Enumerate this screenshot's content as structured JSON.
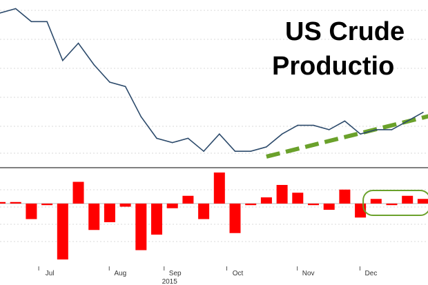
{
  "title": [
    "US Crude",
    "Productio"
  ],
  "chart_data": [
    {
      "type": "line",
      "name": "production",
      "x": [
        0,
        1,
        2,
        3,
        4,
        5,
        6,
        7,
        8,
        9,
        10,
        11,
        12,
        13,
        14,
        15,
        16,
        17,
        18,
        19,
        20,
        21,
        22,
        23,
        24,
        25,
        26,
        27
      ],
      "values": [
        9.59,
        9.6,
        9.57,
        9.57,
        9.48,
        9.52,
        9.47,
        9.43,
        9.42,
        9.35,
        9.3,
        9.29,
        9.3,
        9.27,
        9.31,
        9.27,
        9.27,
        9.28,
        9.31,
        9.33,
        9.33,
        9.32,
        9.34,
        9.31,
        9.32,
        9.32,
        9.34,
        9.36
      ],
      "ylim": [
        9.24,
        9.62
      ],
      "trend": {
        "from_index": 17,
        "to_index": 27,
        "style": "dashed",
        "color": "#6aa12b"
      },
      "line_color": "#2c4a6b"
    },
    {
      "type": "bar",
      "name": "weekly change",
      "x": [
        0,
        1,
        2,
        3,
        4,
        5,
        6,
        7,
        8,
        9,
        10,
        11,
        12,
        13,
        14,
        15,
        16,
        17,
        18,
        19,
        20,
        21,
        22,
        23,
        24,
        25,
        26,
        27
      ],
      "values": [
        1,
        1,
        -10,
        -1,
        -36,
        14,
        -17,
        -12,
        -2,
        -30,
        -20,
        -3,
        5,
        -10,
        20,
        -19,
        -1,
        4,
        12,
        7,
        -1,
        -4,
        9,
        -9,
        3,
        -1,
        5,
        3
      ],
      "ylim": [
        -40,
        20
      ],
      "bar_color": "#ff0000",
      "highlight": {
        "from_index": 23,
        "to_index": 27,
        "color": "#6aa12b"
      }
    }
  ],
  "x_axis": {
    "months": [
      "Jul",
      "Aug",
      "Sep",
      "Oct",
      "Nov",
      "Dec"
    ],
    "month_at_index": [
      3,
      7.5,
      11,
      15,
      19.5,
      23.5
    ],
    "year": "2015",
    "year_at_index": 11
  }
}
